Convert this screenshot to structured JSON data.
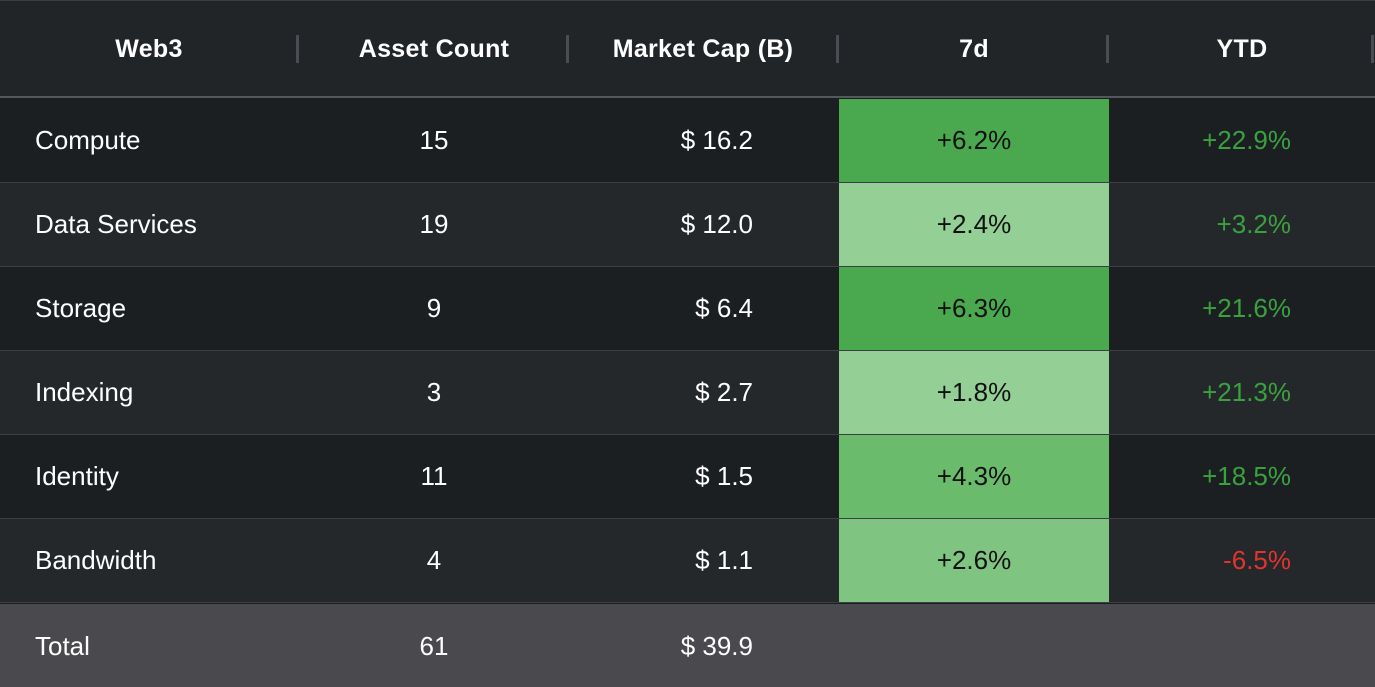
{
  "table": {
    "headers": {
      "web3": "Web3",
      "asset_count": "Asset Count",
      "market_cap": "Market Cap (B)",
      "d7": "7d",
      "ytd": "YTD"
    },
    "rows": [
      {
        "name": "Compute",
        "count": "15",
        "cap": "$ 16.2",
        "d7": "+6.2%",
        "d7_bg": "#4aa84e",
        "ytd": "+22.9%",
        "ytd_color": "#3aa13f"
      },
      {
        "name": "Data Services",
        "count": "19",
        "cap": "$ 12.0",
        "d7": "+2.4%",
        "d7_bg": "#94cf95",
        "ytd": "+3.2%",
        "ytd_color": "#3aa13f"
      },
      {
        "name": "Storage",
        "count": "9",
        "cap": "$ 6.4",
        "d7": "+6.3%",
        "d7_bg": "#4aa84e",
        "ytd": "+21.6%",
        "ytd_color": "#3aa13f"
      },
      {
        "name": "Indexing",
        "count": "3",
        "cap": "$ 2.7",
        "d7": "+1.8%",
        "d7_bg": "#94cf95",
        "ytd": "+21.3%",
        "ytd_color": "#3aa13f"
      },
      {
        "name": "Identity",
        "count": "11",
        "cap": "$ 1.5",
        "d7": "+4.3%",
        "d7_bg": "#6bbb6d",
        "ytd": "+18.5%",
        "ytd_color": "#3aa13f"
      },
      {
        "name": "Bandwidth",
        "count": "4",
        "cap": "$ 1.1",
        "d7": "+2.6%",
        "d7_bg": "#80c482",
        "ytd": "-6.5%",
        "ytd_color": "#e0342f"
      }
    ],
    "total": {
      "name": "Total",
      "count": "61",
      "cap": "$ 39.9"
    }
  }
}
